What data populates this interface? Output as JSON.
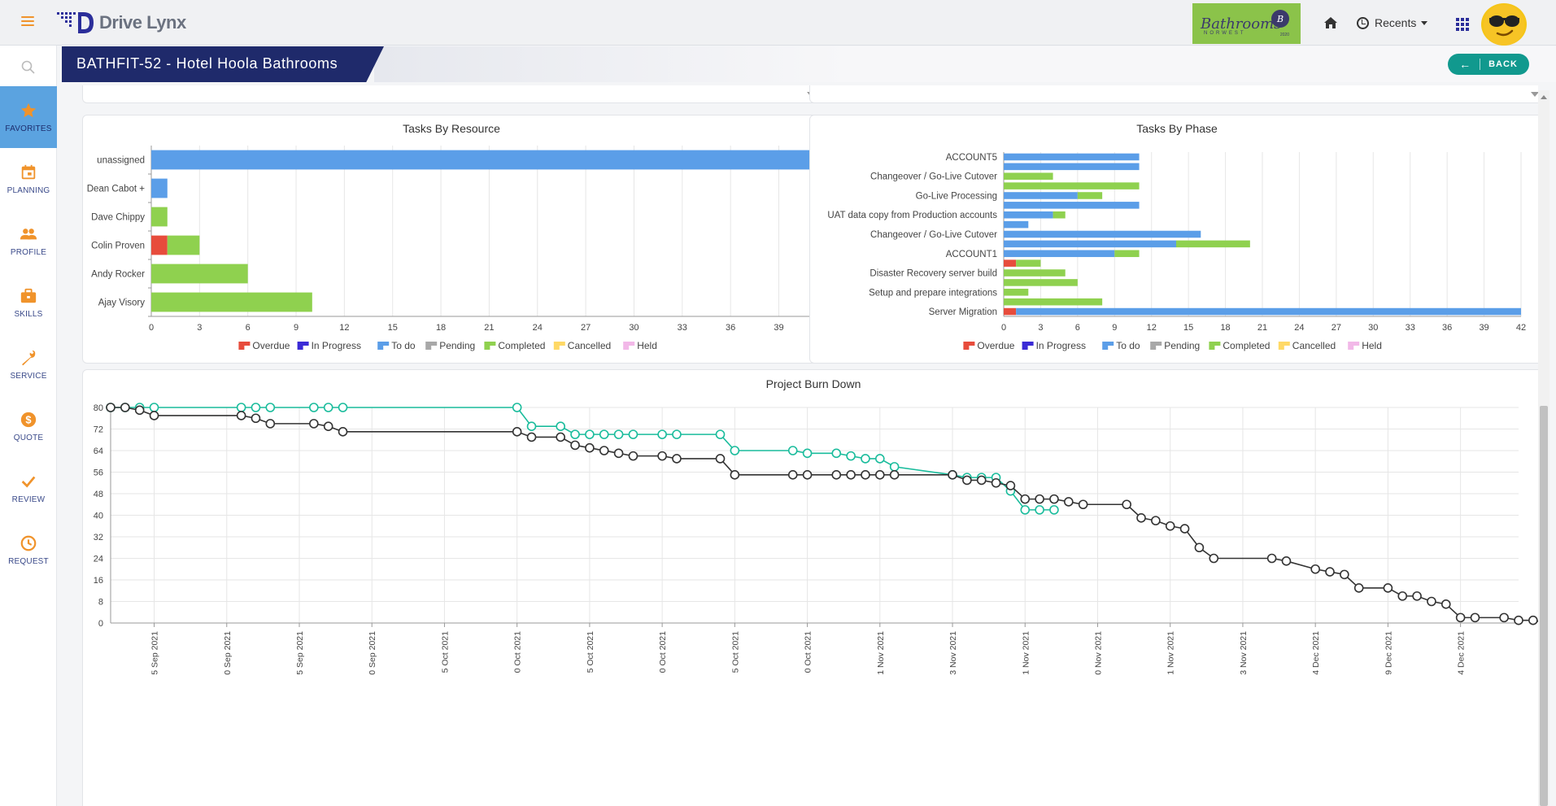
{
  "header": {
    "brand": "Drive Lynx",
    "client_logo": {
      "script": "Bathrooms",
      "sub": "NORWEST",
      "badge": "B",
      "year": "2020"
    },
    "recents_label": "Recents",
    "colors": {
      "accent": "#f0932b",
      "navy": "#1f2a6b"
    }
  },
  "sidebar": {
    "items": [
      {
        "label": "FAVORITES",
        "icon": "star-icon",
        "active": true
      },
      {
        "label": "PLANNING",
        "icon": "calendar-icon",
        "active": false
      },
      {
        "label": "PROFILE",
        "icon": "people-icon",
        "active": false
      },
      {
        "label": "SKILLS",
        "icon": "briefcase-icon",
        "active": false
      },
      {
        "label": "SERVICE",
        "icon": "wrench-icon",
        "active": false
      },
      {
        "label": "QUOTE",
        "icon": "dollar-icon",
        "active": false
      },
      {
        "label": "REVIEW",
        "icon": "check-icon",
        "active": false
      },
      {
        "label": "REQUEST",
        "icon": "clock-icon",
        "active": false
      }
    ]
  },
  "page": {
    "title": "BATHFIT-52 - Hotel Hoola Bathrooms",
    "back_label": "BACK"
  },
  "legend": [
    {
      "label": "Overdue",
      "color": "#e74c3c"
    },
    {
      "label": "In Progress",
      "color": "#3b2bd6"
    },
    {
      "label": "To do",
      "color": "#5b9ee8"
    },
    {
      "label": "Pending",
      "color": "#a8a8a8"
    },
    {
      "label": "Completed",
      "color": "#8fd14f"
    },
    {
      "label": "Cancelled",
      "color": "#ffd966"
    },
    {
      "label": "Held",
      "color": "#f2b8e8"
    }
  ],
  "chart_data": [
    {
      "type": "bar",
      "orientation": "horizontal",
      "stacked": true,
      "title": "Tasks By Resource",
      "categories": [
        "unassigned",
        "Dean Cabot +",
        "Dave Chippy",
        "Colin Proven",
        "Andy Rocker",
        "Ajay Visory"
      ],
      "xticks": [
        0,
        3,
        6,
        9,
        12,
        15,
        18,
        21,
        24,
        27,
        30,
        33,
        36,
        39
      ],
      "xlim": [
        0,
        41.2
      ],
      "series": [
        {
          "name": "Overdue",
          "values": [
            0,
            0,
            0,
            1,
            0,
            0
          ]
        },
        {
          "name": "In Progress",
          "values": [
            0,
            0,
            0,
            0,
            0,
            0
          ]
        },
        {
          "name": "To do",
          "values": [
            41.2,
            1,
            0,
            0,
            0,
            0
          ]
        },
        {
          "name": "Pending",
          "values": [
            0,
            0,
            0,
            0,
            0,
            0
          ]
        },
        {
          "name": "Completed",
          "values": [
            0,
            0,
            1,
            2,
            6,
            10
          ]
        },
        {
          "name": "Cancelled",
          "values": [
            0,
            0,
            0,
            0,
            0,
            0
          ]
        },
        {
          "name": "Held",
          "values": [
            0,
            0,
            0,
            0,
            0,
            0
          ]
        }
      ]
    },
    {
      "type": "bar",
      "orientation": "horizontal",
      "stacked": true,
      "title": "Tasks By Phase",
      "categories": [
        "ACCOUNT5",
        "",
        "Changeover / Go-Live Cutover",
        "",
        "Go-Live Processing",
        "",
        "UAT data copy from Production accounts",
        "",
        "Changeover / Go-Live Cutover",
        "",
        "ACCOUNT1",
        "",
        "Disaster Recovery server build",
        "",
        "Setup and prepare integrations",
        "",
        "Server Migration"
      ],
      "xticks": [
        0,
        3,
        6,
        9,
        12,
        15,
        18,
        21,
        24,
        27,
        30,
        33,
        36,
        39,
        42
      ],
      "xlim": [
        0,
        42
      ],
      "series": [
        {
          "name": "Overdue",
          "values": [
            0,
            0,
            0,
            0,
            0,
            0,
            0,
            0,
            0,
            0,
            0,
            1,
            0,
            0,
            0,
            0,
            1
          ]
        },
        {
          "name": "In Progress",
          "values": [
            0,
            0,
            0,
            0,
            0,
            0,
            0,
            0,
            0,
            0,
            0,
            0,
            0,
            0,
            0,
            0,
            0
          ]
        },
        {
          "name": "To do",
          "values": [
            11,
            11,
            0,
            0,
            6,
            11,
            4,
            2,
            16,
            14,
            9,
            0,
            0,
            0,
            0,
            0,
            41
          ]
        },
        {
          "name": "Pending",
          "values": [
            0,
            0,
            0,
            0,
            0,
            0,
            0,
            0,
            0,
            0,
            0,
            0,
            0,
            0,
            0,
            0,
            0
          ]
        },
        {
          "name": "Completed",
          "values": [
            0,
            0,
            4,
            11,
            2,
            0,
            1,
            0,
            0,
            6,
            2,
            2,
            5,
            6,
            2,
            8,
            0
          ]
        },
        {
          "name": "Cancelled",
          "values": [
            0,
            0,
            0,
            0,
            0,
            0,
            0,
            0,
            0,
            0,
            0,
            0,
            0,
            0,
            0,
            0,
            0
          ]
        },
        {
          "name": "Held",
          "values": [
            0,
            0,
            0,
            0,
            0,
            0,
            0,
            0,
            0,
            0,
            0,
            0,
            0,
            0,
            0,
            0,
            0
          ]
        }
      ]
    },
    {
      "type": "line",
      "title": "Project Burn Down",
      "ylim": [
        0,
        80
      ],
      "yticks": [
        0,
        8,
        16,
        24,
        32,
        40,
        48,
        56,
        64,
        72,
        80
      ],
      "xlim": [
        -3,
        94
      ],
      "xticks": [
        {
          "x": 0,
          "label": "5 Sep 2021"
        },
        {
          "x": 5,
          "label": "0 Sep 2021"
        },
        {
          "x": 10,
          "label": "5 Sep 2021"
        },
        {
          "x": 15,
          "label": "0 Sep 2021"
        },
        {
          "x": 20,
          "label": "5 Oct 2021"
        },
        {
          "x": 25,
          "label": "0 Oct 2021"
        },
        {
          "x": 30,
          "label": "5 Oct 2021"
        },
        {
          "x": 35,
          "label": "0 Oct 2021"
        },
        {
          "x": 40,
          "label": "5 Oct 2021"
        },
        {
          "x": 45,
          "label": "0 Oct 2021"
        },
        {
          "x": 50,
          "label": "1 Nov 2021"
        },
        {
          "x": 55,
          "label": "3 Nov 2021"
        },
        {
          "x": 60,
          "label": "1 Nov 2021"
        },
        {
          "x": 65,
          "label": "0 Nov 2021"
        },
        {
          "x": 70,
          "label": "1 Nov 2021"
        },
        {
          "x": 75,
          "label": "3 Nov 2021"
        },
        {
          "x": 80,
          "label": "4 Dec 2021"
        },
        {
          "x": 85,
          "label": "9 Dec 2021"
        },
        {
          "x": 90,
          "label": "4 Dec 2021"
        }
      ],
      "series": [
        {
          "color": "#1abc9c",
          "x": [
            -3,
            -2,
            -1,
            0,
            6,
            7,
            8,
            11,
            12,
            13,
            25,
            26,
            28,
            29,
            30,
            31,
            32,
            33,
            35,
            36,
            39,
            40,
            44,
            45,
            47,
            48,
            49,
            50,
            51,
            55,
            56,
            57,
            58,
            59,
            60,
            61,
            62
          ],
          "y": [
            80,
            80,
            80,
            80,
            80,
            80,
            80,
            80,
            80,
            80,
            80,
            73,
            73,
            70,
            70,
            70,
            70,
            70,
            70,
            70,
            70,
            64,
            64,
            63,
            63,
            62,
            61,
            61,
            58,
            55,
            54,
            54,
            54,
            49,
            42,
            42,
            42
          ]
        },
        {
          "color": "#333333",
          "x": [
            -3,
            -2,
            -1,
            0,
            6,
            7,
            8,
            11,
            12,
            13,
            25,
            26,
            28,
            29,
            30,
            31,
            32,
            33,
            35,
            36,
            39,
            40,
            44,
            45,
            47,
            48,
            49,
            50,
            51,
            55,
            56,
            57,
            58,
            59,
            60,
            61,
            62,
            63,
            64,
            67,
            68,
            69,
            70,
            71,
            72,
            73,
            77,
            78,
            80,
            81,
            82,
            83,
            85,
            86,
            87,
            88,
            89,
            90,
            91,
            93,
            94,
            95,
            96
          ],
          "y": [
            80,
            80,
            79,
            77,
            77,
            76,
            74,
            74,
            73,
            71,
            71,
            69,
            69,
            66,
            65,
            64,
            63,
            62,
            62,
            61,
            61,
            55,
            55,
            55,
            55,
            55,
            55,
            55,
            55,
            55,
            53,
            53,
            52,
            51,
            46,
            46,
            46,
            45,
            44,
            44,
            39,
            38,
            36,
            35,
            28,
            24,
            24,
            23,
            20,
            19,
            18,
            13,
            13,
            10,
            10,
            8,
            7,
            2,
            2,
            2,
            1,
            1,
            0
          ]
        }
      ]
    }
  ]
}
